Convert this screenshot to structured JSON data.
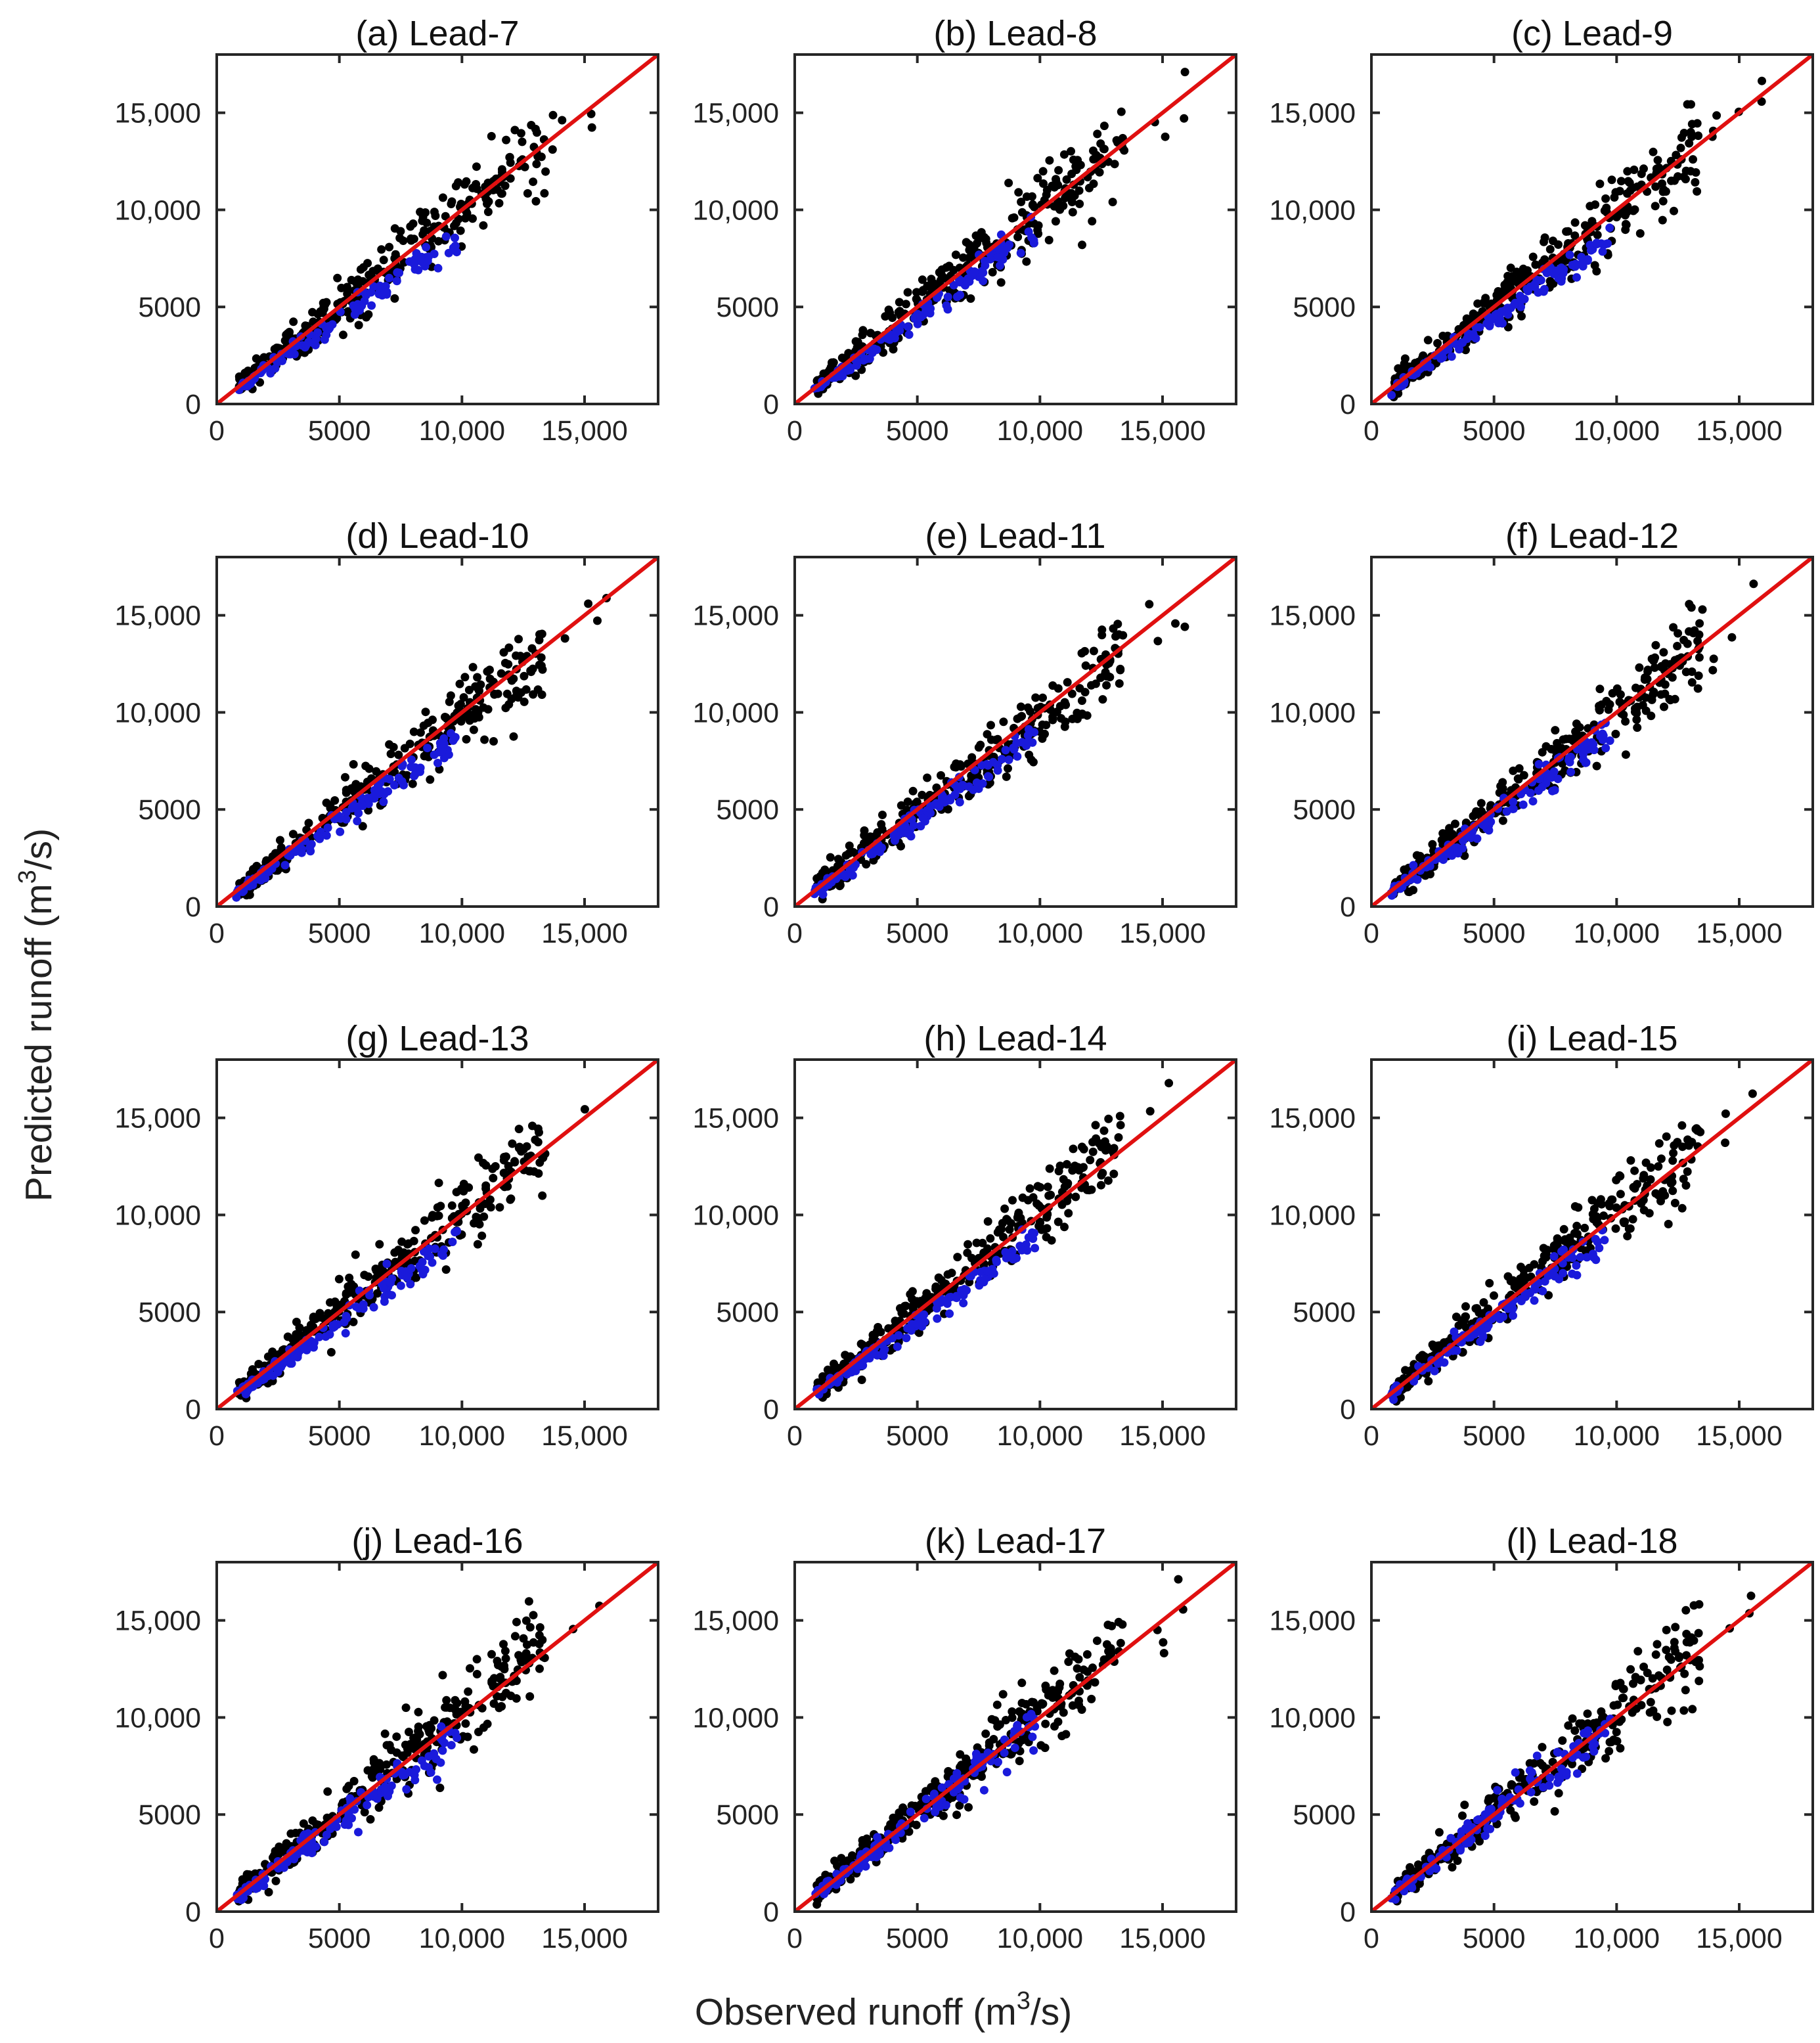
{
  "figure": {
    "xlabel_main": "Observed runoff (m",
    "xlabel_sup": "3",
    "xlabel_tail": "/s)",
    "ylabel_main": "Predicted runoff (m",
    "ylabel_sup": "3",
    "ylabel_tail": "/s)",
    "colors": {
      "black_series": "#000000",
      "blue_series": "#1a1adb",
      "reference_line": "#e01010"
    }
  },
  "chart_data": [
    {
      "type": "scatter",
      "title": "(a) Lead-7",
      "xlim": [
        0,
        18000
      ],
      "ylim": [
        0,
        18000
      ],
      "xticks": [
        "0",
        "5000",
        "10,000",
        "15,000"
      ],
      "yticks": [
        "0",
        "5000",
        "10,000",
        "15,000"
      ],
      "reference_line": "1:1",
      "series": [
        {
          "name": "black",
          "color": "#000000",
          "trend_slope": 1.0,
          "spread": 1500
        },
        {
          "name": "blue",
          "color": "#1a1adb",
          "trend_slope": 0.88,
          "spread": 700
        }
      ]
    },
    {
      "type": "scatter",
      "title": "(b) Lead-8",
      "xlim": [
        0,
        18000
      ],
      "ylim": [
        0,
        18000
      ],
      "xticks": [
        "0",
        "5000",
        "10,000",
        "15,000"
      ],
      "yticks": [
        "0",
        "5000",
        "10,000",
        "15,000"
      ],
      "reference_line": "1:1",
      "series": [
        {
          "name": "black",
          "color": "#000000",
          "trend_slope": 1.0,
          "spread": 1500
        },
        {
          "name": "blue",
          "color": "#1a1adb",
          "trend_slope": 0.9,
          "spread": 700
        }
      ]
    },
    {
      "type": "scatter",
      "title": "(c) Lead-9",
      "xlim": [
        0,
        18000
      ],
      "ylim": [
        0,
        18000
      ],
      "xticks": [
        "0",
        "5000",
        "10,000",
        "15,000"
      ],
      "yticks": [
        "0",
        "5000",
        "10,000",
        "15,000"
      ],
      "reference_line": "1:1",
      "series": [
        {
          "name": "black",
          "color": "#000000",
          "trend_slope": 1.0,
          "spread": 1450
        },
        {
          "name": "blue",
          "color": "#1a1adb",
          "trend_slope": 0.88,
          "spread": 700
        }
      ]
    },
    {
      "type": "scatter",
      "title": "(d) Lead-10",
      "xlim": [
        0,
        18000
      ],
      "ylim": [
        0,
        18000
      ],
      "xticks": [
        "0",
        "5000",
        "10,000",
        "15,000"
      ],
      "yticks": [
        "0",
        "5000",
        "10,000",
        "15,000"
      ],
      "reference_line": "1:1",
      "series": [
        {
          "name": "black",
          "color": "#000000",
          "trend_slope": 0.97,
          "spread": 1400
        },
        {
          "name": "blue",
          "color": "#1a1adb",
          "trend_slope": 0.88,
          "spread": 700
        }
      ]
    },
    {
      "type": "scatter",
      "title": "(e) Lead-11",
      "xlim": [
        0,
        18000
      ],
      "ylim": [
        0,
        18000
      ],
      "xticks": [
        "0",
        "5000",
        "10,000",
        "15,000"
      ],
      "yticks": [
        "0",
        "5000",
        "10,000",
        "15,000"
      ],
      "reference_line": "1:1",
      "series": [
        {
          "name": "black",
          "color": "#000000",
          "trend_slope": 0.97,
          "spread": 1400
        },
        {
          "name": "blue",
          "color": "#1a1adb",
          "trend_slope": 0.9,
          "spread": 800
        }
      ]
    },
    {
      "type": "scatter",
      "title": "(f) Lead-12",
      "xlim": [
        0,
        18000
      ],
      "ylim": [
        0,
        18000
      ],
      "xticks": [
        "0",
        "5000",
        "10,000",
        "15,000"
      ],
      "yticks": [
        "0",
        "5000",
        "10,000",
        "15,000"
      ],
      "reference_line": "1:1",
      "series": [
        {
          "name": "black",
          "color": "#000000",
          "trend_slope": 1.0,
          "spread": 1400
        },
        {
          "name": "blue",
          "color": "#1a1adb",
          "trend_slope": 0.92,
          "spread": 800
        }
      ]
    },
    {
      "type": "scatter",
      "title": "(g) Lead-13",
      "xlim": [
        0,
        18000
      ],
      "ylim": [
        0,
        18000
      ],
      "xticks": [
        "0",
        "5000",
        "10,000",
        "15,000"
      ],
      "yticks": [
        "0",
        "5000",
        "10,000",
        "15,000"
      ],
      "reference_line": "1:1",
      "series": [
        {
          "name": "black",
          "color": "#000000",
          "trend_slope": 1.02,
          "spread": 1450
        },
        {
          "name": "blue",
          "color": "#1a1adb",
          "trend_slope": 0.9,
          "spread": 750
        }
      ]
    },
    {
      "type": "scatter",
      "title": "(h) Lead-14",
      "xlim": [
        0,
        18000
      ],
      "ylim": [
        0,
        18000
      ],
      "xticks": [
        "0",
        "5000",
        "10,000",
        "15,000"
      ],
      "yticks": [
        "0",
        "5000",
        "10,000",
        "15,000"
      ],
      "reference_line": "1:1",
      "series": [
        {
          "name": "black",
          "color": "#000000",
          "trend_slope": 1.02,
          "spread": 1450
        },
        {
          "name": "blue",
          "color": "#1a1adb",
          "trend_slope": 0.9,
          "spread": 750
        }
      ]
    },
    {
      "type": "scatter",
      "title": "(i) Lead-15",
      "xlim": [
        0,
        18000
      ],
      "ylim": [
        0,
        18000
      ],
      "xticks": [
        "0",
        "5000",
        "10,000",
        "15,000"
      ],
      "yticks": [
        "0",
        "5000",
        "10,000",
        "15,000"
      ],
      "reference_line": "1:1",
      "series": [
        {
          "name": "black",
          "color": "#000000",
          "trend_slope": 1.02,
          "spread": 1450
        },
        {
          "name": "blue",
          "color": "#1a1adb",
          "trend_slope": 0.93,
          "spread": 850
        }
      ]
    },
    {
      "type": "scatter",
      "title": "(j) Lead-16",
      "xlim": [
        0,
        18000
      ],
      "ylim": [
        0,
        18000
      ],
      "xticks": [
        "0",
        "5000",
        "10,000",
        "15,000"
      ],
      "yticks": [
        "0",
        "5000",
        "10,000",
        "15,000"
      ],
      "reference_line": "1:1",
      "series": [
        {
          "name": "black",
          "color": "#000000",
          "trend_slope": 1.03,
          "spread": 1500
        },
        {
          "name": "blue",
          "color": "#1a1adb",
          "trend_slope": 0.92,
          "spread": 900
        }
      ]
    },
    {
      "type": "scatter",
      "title": "(k) Lead-17",
      "xlim": [
        0,
        18000
      ],
      "ylim": [
        0,
        18000
      ],
      "xticks": [
        "0",
        "5000",
        "10,000",
        "15,000"
      ],
      "yticks": [
        "0",
        "5000",
        "10,000",
        "15,000"
      ],
      "reference_line": "1:1",
      "series": [
        {
          "name": "black",
          "color": "#000000",
          "trend_slope": 1.03,
          "spread": 1500
        },
        {
          "name": "blue",
          "color": "#1a1adb",
          "trend_slope": 0.97,
          "spread": 1000
        }
      ]
    },
    {
      "type": "scatter",
      "title": "(l) Lead-18",
      "xlim": [
        0,
        18000
      ],
      "ylim": [
        0,
        18000
      ],
      "xticks": [
        "0",
        "5000",
        "10,000",
        "15,000"
      ],
      "yticks": [
        "0",
        "5000",
        "10,000",
        "15,000"
      ],
      "reference_line": "1:1",
      "series": [
        {
          "name": "black",
          "color": "#000000",
          "trend_slope": 1.02,
          "spread": 1500
        },
        {
          "name": "blue",
          "color": "#1a1adb",
          "trend_slope": 0.98,
          "spread": 1000
        }
      ]
    }
  ]
}
